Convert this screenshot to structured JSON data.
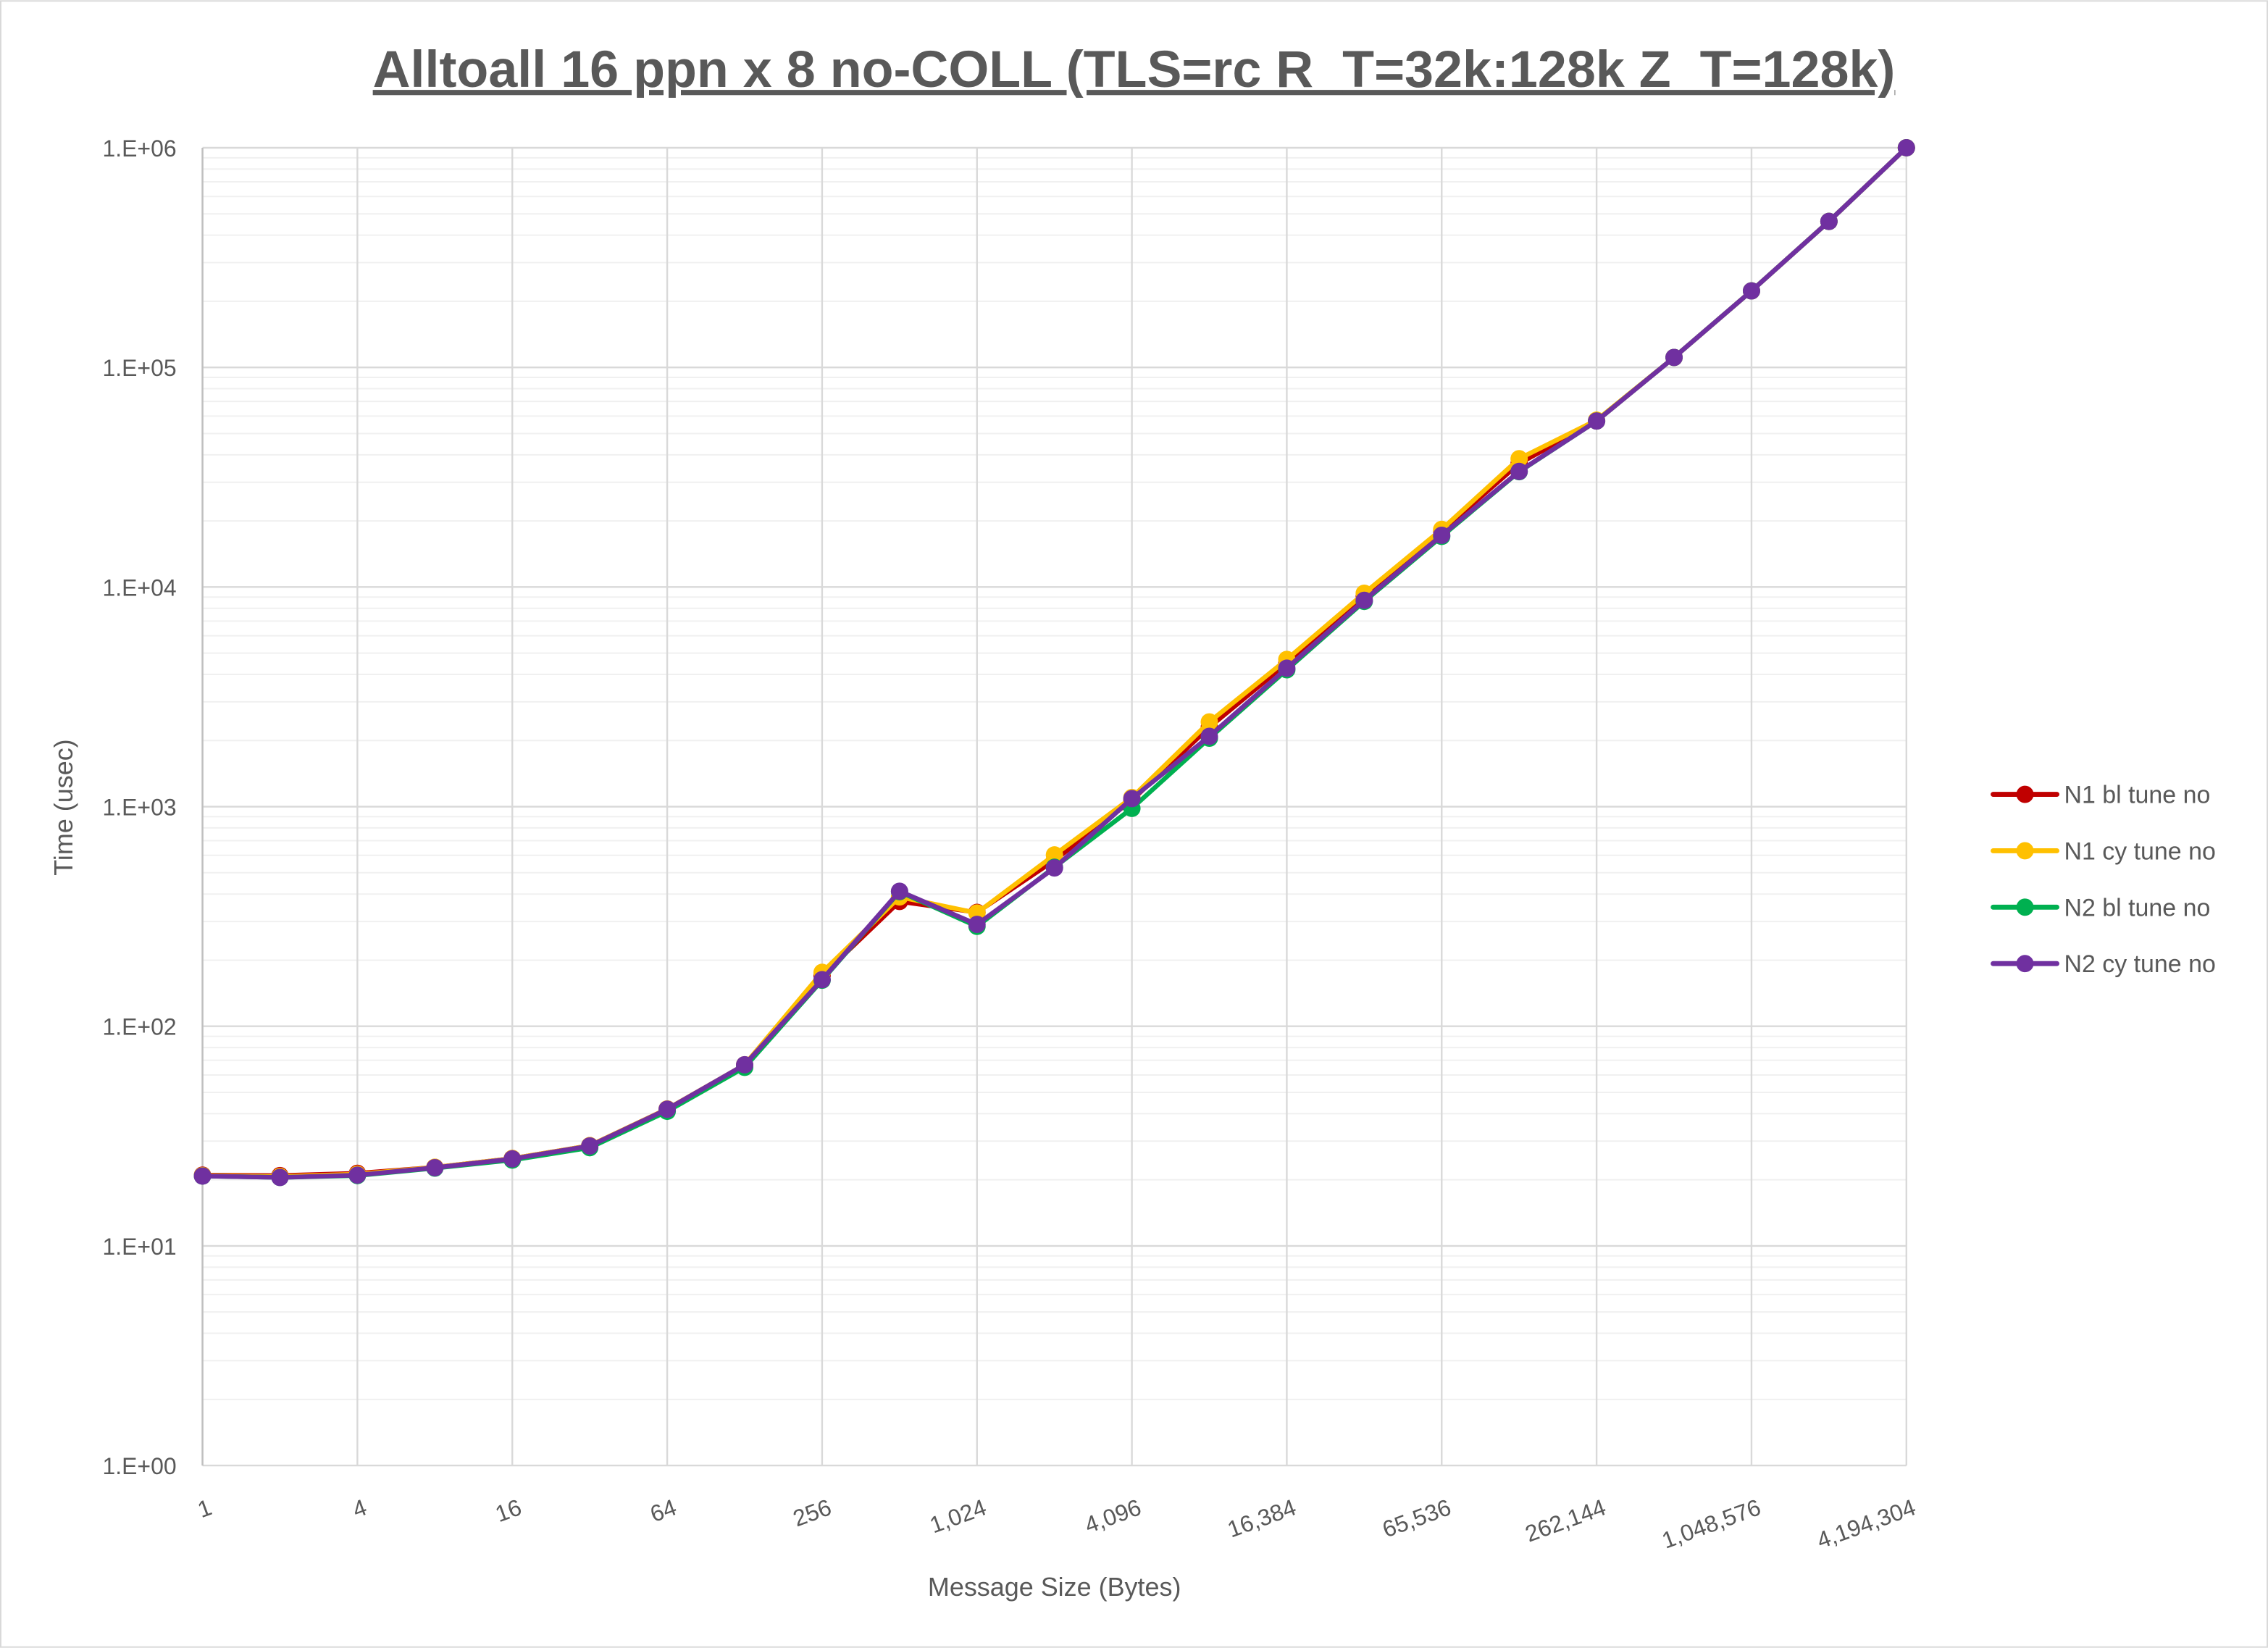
{
  "chart_data": {
    "type": "line",
    "title": "Alltoall 16 ppn x 8 no-COLL (TLS=rc R_T=32k:128k Z_T=128k)",
    "xlabel": "Message Size (Bytes)",
    "ylabel": "Time (usec)",
    "x_scale": "log2",
    "y_scale": "log10",
    "ylim": [
      1,
      1000000
    ],
    "grid": true,
    "legend_position": "right",
    "x": [
      1,
      2,
      4,
      8,
      16,
      32,
      64,
      128,
      256,
      512,
      1024,
      2048,
      4096,
      8192,
      16384,
      32768,
      65536,
      131072,
      262144,
      524288,
      1048576,
      2097152,
      4194304
    ],
    "x_tick_labels": [
      "1",
      "4",
      "16",
      "64",
      "256",
      "1,024",
      "4,096",
      "16,384",
      "65,536",
      "262,144",
      "1,048,576",
      "4,194,304"
    ],
    "y_tick_labels": [
      "1.E+00",
      "1.E+01",
      "1.E+02",
      "1.E+03",
      "1.E+04",
      "1.E+05",
      "1.E+06"
    ],
    "series": [
      {
        "name": "N1 bl tune no",
        "color": "#C00000",
        "values": [
          21.0,
          20.9,
          21.4,
          22.8,
          25.0,
          28.6,
          42.0,
          66.5,
          170,
          370,
          330,
          570,
          1070,
          2300,
          4500,
          9100,
          18000,
          36500,
          57000,
          111000,
          223000,
          462000,
          1000000
        ]
      },
      {
        "name": "N1 cy tune no",
        "color": "#FFC000",
        "values": [
          20.9,
          20.7,
          21.2,
          22.8,
          25.0,
          28.6,
          42.0,
          66.8,
          176,
          388,
          328,
          603,
          1100,
          2430,
          4680,
          9370,
          18300,
          38400,
          57500,
          111000,
          223000,
          462000,
          1000000
        ]
      },
      {
        "name": "N2 bl tune no",
        "color": "#00B050",
        "values": [
          20.8,
          20.5,
          20.9,
          22.6,
          24.6,
          28.0,
          41.0,
          65.0,
          162,
          410,
          285,
          530,
          982,
          2050,
          4200,
          8600,
          17000,
          33500,
          57000,
          111000,
          223000,
          462000,
          1000000
        ]
      },
      {
        "name": "N2 cy tune no",
        "color": "#7030A0",
        "values": [
          20.8,
          20.5,
          21.0,
          22.7,
          24.9,
          28.5,
          41.9,
          66.8,
          163,
          412,
          291,
          526,
          1088,
          2090,
          4270,
          8700,
          17200,
          33600,
          57000,
          111000,
          223000,
          462000,
          1000000
        ]
      }
    ]
  }
}
